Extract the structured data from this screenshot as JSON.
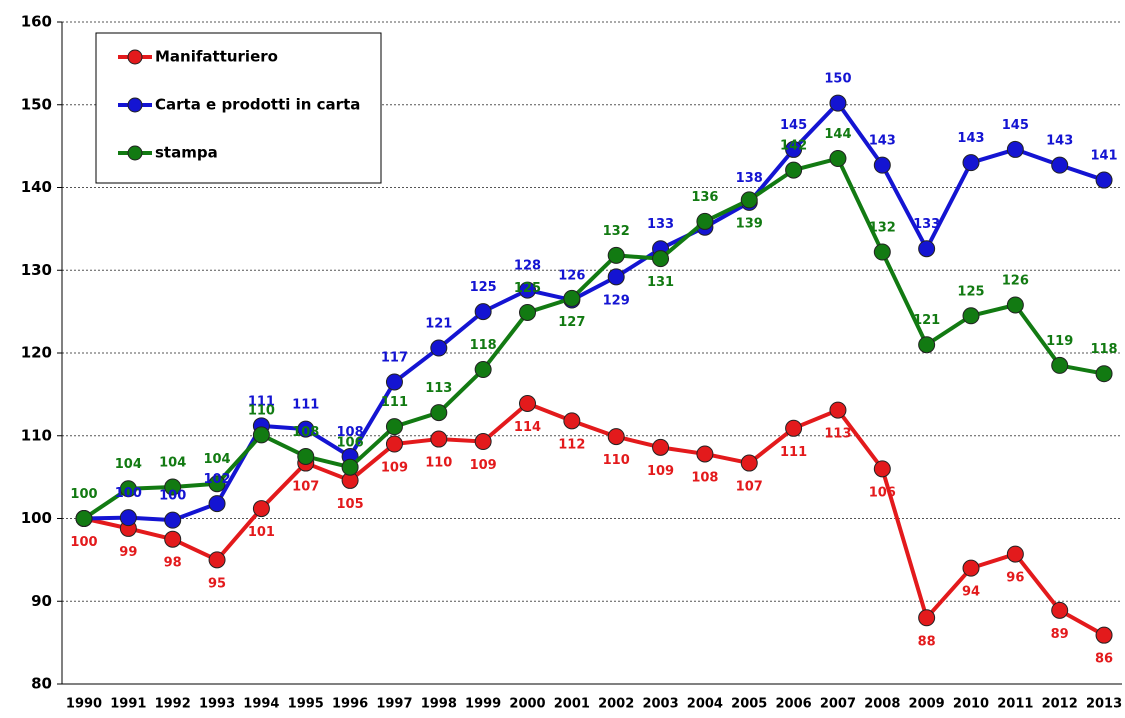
{
  "chart_data": {
    "type": "line",
    "categories": [
      "1990",
      "1991",
      "1992",
      "1993",
      "1994",
      "1995",
      "1996",
      "1997",
      "1998",
      "1999",
      "2000",
      "2001",
      "2002",
      "2003",
      "2004",
      "2005",
      "2006",
      "2007",
      "2008",
      "2009",
      "2010",
      "2011",
      "2012",
      "2013"
    ],
    "series": [
      {
        "name": "Manifatturiero",
        "color": "#e31a1c",
        "values": [
          100,
          98.8,
          97.5,
          95,
          101.2,
          106.7,
          104.6,
          109,
          109.6,
          109.3,
          113.9,
          111.8,
          109.9,
          108.6,
          107.8,
          106.7,
          110.9,
          113.1,
          106,
          88,
          94,
          95.7,
          88.9,
          85.9
        ],
        "value_labels": [
          "100",
          "99",
          "98",
          "95",
          "101",
          "107",
          "105",
          "109",
          "110",
          "109",
          "114",
          "112",
          "110",
          "109",
          "108",
          "107",
          "111",
          "113",
          "106",
          "88",
          "94",
          "96",
          "89",
          "86"
        ]
      },
      {
        "name": "Carta e prodotti in carta",
        "color": "#1414d2",
        "values": [
          100,
          100.1,
          99.8,
          101.8,
          111.2,
          110.8,
          107.5,
          116.5,
          120.6,
          125,
          127.6,
          126.4,
          129.2,
          132.6,
          135.2,
          138.2,
          144.6,
          150.2,
          142.7,
          132.6,
          143,
          144.6,
          142.7,
          140.9
        ],
        "value_labels": [
          null,
          "100",
          "100",
          "102",
          "111",
          "111",
          "108",
          "117",
          "121",
          "125",
          "128",
          "126",
          "129",
          "133",
          null,
          "138",
          "145",
          "150",
          "143",
          "133",
          "143",
          "145",
          "143",
          "141"
        ]
      },
      {
        "name": "stampa",
        "color": "#127a12",
        "values": [
          100,
          103.6,
          103.8,
          104.2,
          110.1,
          107.5,
          106.2,
          111.1,
          112.8,
          118,
          124.9,
          126.6,
          131.8,
          131.4,
          135.9,
          138.5,
          142.1,
          143.5,
          132.2,
          121,
          124.5,
          125.8,
          118.5,
          117.5
        ],
        "value_labels": [
          "100",
          "104",
          "104",
          "104",
          "110",
          "108",
          "106",
          "111",
          "113",
          "118",
          "125",
          "127",
          "132",
          "131",
          "136",
          "139",
          "142",
          "144",
          "132",
          "121",
          "125",
          "126",
          "119",
          "118"
        ]
      }
    ],
    "ylim": [
      80,
      160
    ],
    "yticks": [
      80,
      90,
      100,
      110,
      120,
      130,
      140,
      150,
      160
    ],
    "grid": true
  }
}
